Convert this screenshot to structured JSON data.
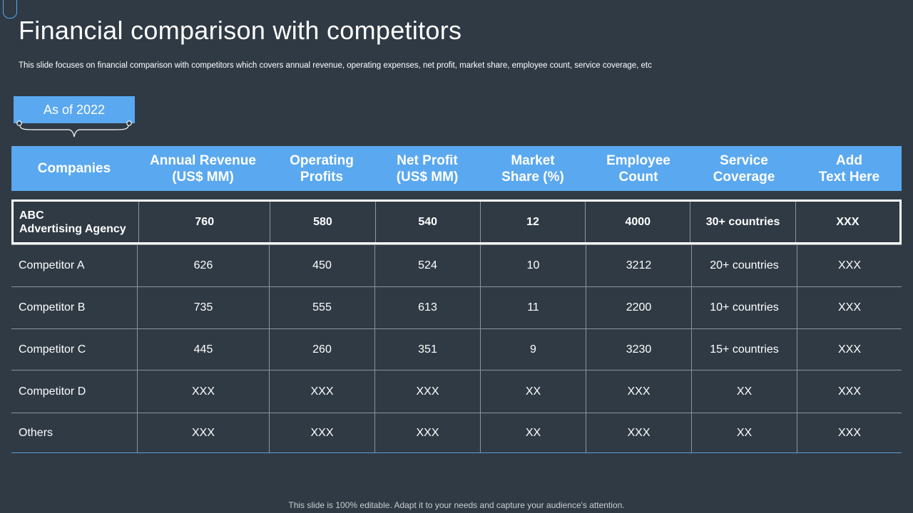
{
  "title": "Financial comparison with competitors",
  "subtitle": "This slide focuses on financial comparison with competitors which covers annual revenue, operating expenses, net profit, market share, employee count, service coverage, etc",
  "as_of_label": "As of 2022",
  "table": {
    "headers": [
      [
        "Companies"
      ],
      [
        "Annual Revenue",
        "(US$ MM)"
      ],
      [
        "Operating",
        "Profits"
      ],
      [
        "Net Profit",
        "(US$ MM)"
      ],
      [
        "Market",
        "Share (%)"
      ],
      [
        "Employee",
        "Count"
      ],
      [
        "Service",
        "Coverage"
      ],
      [
        "Add",
        "Text Here"
      ]
    ],
    "highlight_row": {
      "company": [
        "ABC",
        "Advertising Agency"
      ],
      "cells": [
        "760",
        "580",
        "540",
        "12",
        "4000",
        "30+ countries",
        "XXX"
      ]
    },
    "rows": [
      [
        "Competitor A",
        "626",
        "450",
        "524",
        "10",
        "3212",
        "20+ countries",
        "XXX"
      ],
      [
        "Competitor B",
        "735",
        "555",
        "613",
        "11",
        "2200",
        "10+ countries",
        "XXX"
      ],
      [
        "Competitor C",
        "445",
        "260",
        "351",
        "9",
        "3230",
        "15+ countries",
        "XXX"
      ],
      [
        "Competitor D",
        "XXX",
        "XXX",
        "XXX",
        "XX",
        "XXX",
        "XX",
        "XXX"
      ],
      [
        "Others",
        "XXX",
        "XXX",
        "XXX",
        "XX",
        "XXX",
        "XX",
        "XXX"
      ]
    ]
  },
  "footer": "This slide is 100% editable. Adapt it to your needs and capture your audience's attention.",
  "colors": {
    "background": "#2f3a44",
    "accent": "#5aa8ef",
    "text": "#ffffff"
  }
}
